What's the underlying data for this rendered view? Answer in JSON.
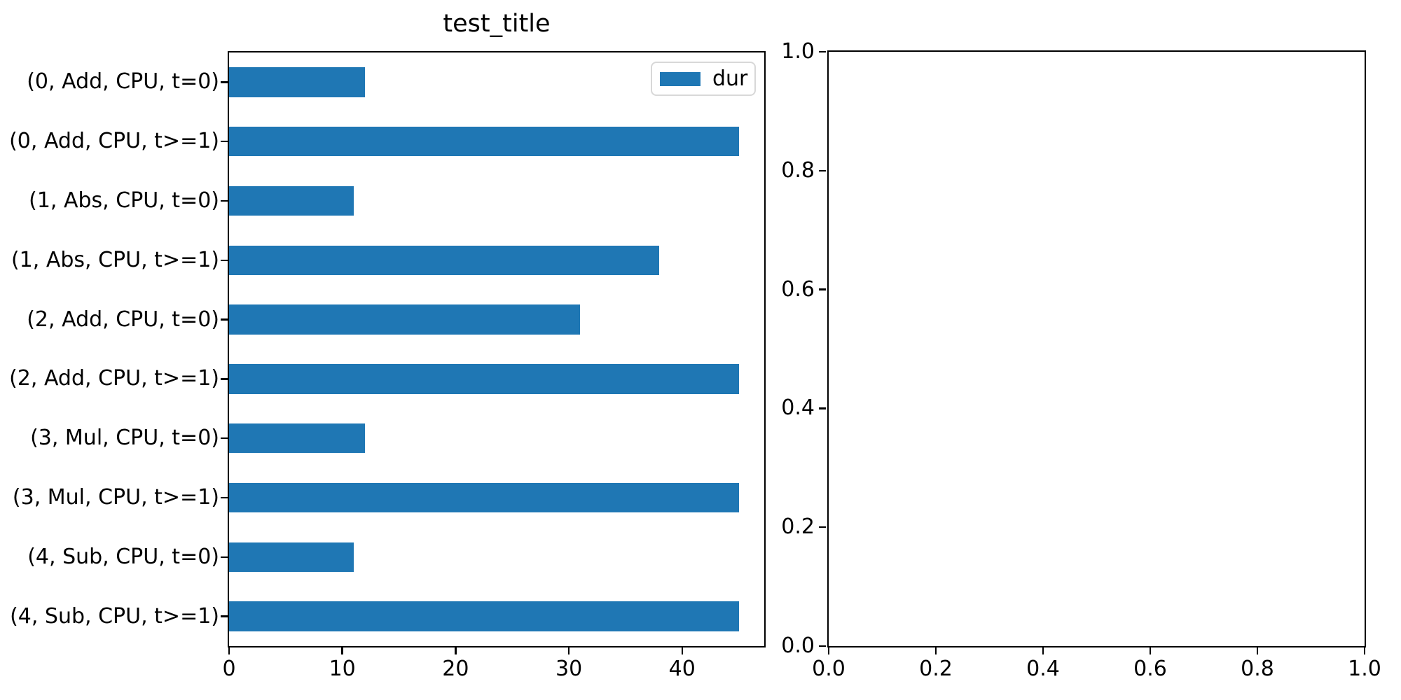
{
  "figure": {
    "background": "#ffffff",
    "text_color": "#000000"
  },
  "accent_color": "#1f77b4",
  "chart_data": [
    {
      "type": "bar",
      "orientation": "horizontal",
      "title": "test_title",
      "xlabel": "",
      "ylabel": "",
      "categories": [
        "(0, Add, CPU, t=0)",
        "(0, Add, CPU, t>=1)",
        "(1, Abs, CPU, t=0)",
        "(1, Abs, CPU, t>=1)",
        "(2, Add, CPU, t=0)",
        "(2, Add, CPU, t>=1)",
        "(3, Mul, CPU, t=0)",
        "(3, Mul, CPU, t>=1)",
        "(4, Sub, CPU, t=0)",
        "(4, Sub, CPU, t>=1)"
      ],
      "series": [
        {
          "name": "dur",
          "color": "#1f77b4",
          "values": [
            12,
            45,
            11,
            38,
            31,
            45,
            12,
            45,
            11,
            45
          ]
        }
      ],
      "xlim": [
        0,
        47.25
      ],
      "xticks": [
        0,
        10,
        20,
        30,
        40
      ],
      "xtick_labels": [
        "0",
        "10",
        "20",
        "30",
        "40"
      ],
      "bar_height_fraction": 0.5,
      "legend": {
        "location": "upper right",
        "entries": [
          {
            "label": "dur",
            "color": "#1f77b4"
          }
        ]
      },
      "grid": false
    },
    {
      "type": "empty",
      "title": "",
      "xlabel": "",
      "ylabel": "",
      "xlim": [
        0,
        1
      ],
      "ylim": [
        0,
        1
      ],
      "xticks": [
        0,
        0.2,
        0.4,
        0.6,
        0.8,
        1
      ],
      "xtick_labels": [
        "0.0",
        "0.2",
        "0.4",
        "0.6",
        "0.8",
        "1.0"
      ],
      "yticks": [
        0,
        0.2,
        0.4,
        0.6,
        0.8,
        1
      ],
      "ytick_labels": [
        "0.0",
        "0.2",
        "0.4",
        "0.6",
        "0.8",
        "1.0"
      ],
      "grid": false
    }
  ]
}
